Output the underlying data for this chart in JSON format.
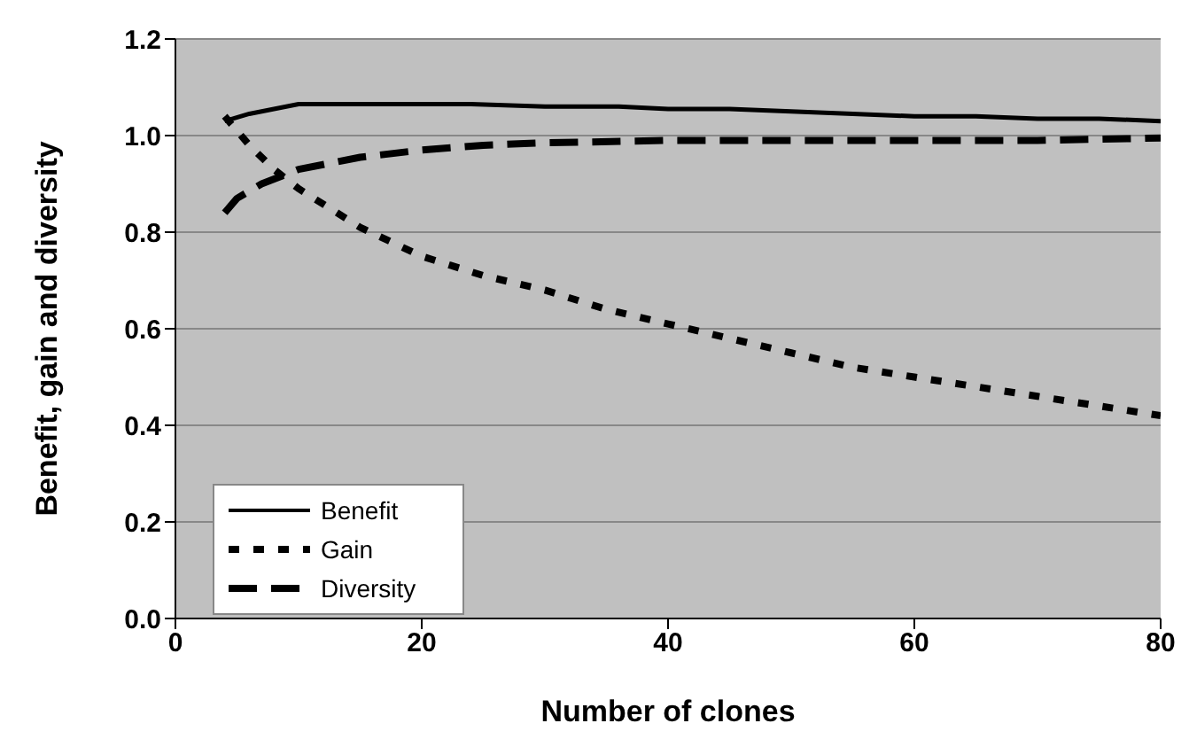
{
  "chart_data": {
    "type": "line",
    "xlabel": "Number of clones",
    "ylabel": "Benefit, gain and diversity",
    "xlim": [
      0,
      80
    ],
    "xticks": [
      0,
      20,
      40,
      60,
      80
    ],
    "ylim": [
      0,
      1.2
    ],
    "yticks": [
      {
        "value": 0,
        "label": "0.0"
      },
      {
        "value": 0.2,
        "label": "0.2"
      },
      {
        "value": 0.4,
        "label": "0.4"
      },
      {
        "value": 0.6,
        "label": "0.6"
      },
      {
        "value": 0.8,
        "label": "0.8"
      },
      {
        "value": 1,
        "label": "1.0"
      },
      {
        "value": 1.2,
        "label": "1.2"
      }
    ],
    "grid": "y",
    "legend": "bottom left",
    "marker": "none",
    "series": [
      {
        "name": "Benefit",
        "color": "#000000",
        "line_style": "solid",
        "x": [
          4,
          6,
          8,
          10,
          15,
          20,
          24,
          30,
          36,
          40,
          45,
          50,
          55,
          60,
          65,
          70,
          75,
          80
        ],
        "values": [
          1.03,
          1.045,
          1.055,
          1.065,
          1.065,
          1.065,
          1.065,
          1.06,
          1.06,
          1.055,
          1.055,
          1.05,
          1.045,
          1.04,
          1.04,
          1.035,
          1.035,
          1.03
        ]
      },
      {
        "name": "Gain",
        "color": "#000000",
        "line_style": "dotted",
        "x": [
          4,
          6,
          8,
          10,
          15,
          20,
          25,
          30,
          35,
          40,
          45,
          50,
          55,
          60,
          65,
          70,
          75,
          80
        ],
        "values": [
          1.04,
          0.98,
          0.93,
          0.89,
          0.81,
          0.75,
          0.71,
          0.68,
          0.64,
          0.61,
          0.58,
          0.55,
          0.52,
          0.5,
          0.48,
          0.46,
          0.44,
          0.42
        ]
      },
      {
        "name": "Diversity",
        "color": "#000000",
        "line_style": "dashed",
        "x": [
          4,
          5,
          7,
          10,
          15,
          20,
          25,
          30,
          40,
          50,
          60,
          70,
          80
        ],
        "values": [
          0.84,
          0.87,
          0.9,
          0.93,
          0.955,
          0.97,
          0.98,
          0.985,
          0.99,
          0.99,
          0.99,
          0.99,
          0.995
        ]
      }
    ]
  }
}
